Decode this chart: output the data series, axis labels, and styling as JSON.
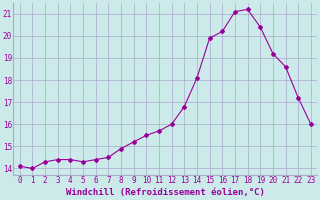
{
  "x": [
    0,
    1,
    2,
    3,
    4,
    5,
    6,
    7,
    8,
    9,
    10,
    11,
    12,
    13,
    14,
    15,
    16,
    17,
    18,
    19,
    20,
    21,
    22,
    23
  ],
  "y": [
    14.1,
    14.0,
    14.3,
    14.4,
    14.4,
    14.3,
    14.4,
    14.5,
    14.9,
    15.2,
    15.5,
    15.7,
    16.0,
    16.8,
    18.1,
    19.9,
    20.2,
    21.1,
    21.2,
    20.4,
    19.2,
    18.6,
    17.2,
    16.0
  ],
  "line_color": "#990099",
  "marker": "D",
  "markersize": 2.0,
  "linewidth": 0.8,
  "xlabel": "Windchill (Refroidissement éolien,°C)",
  "xlabel_fontsize": 6.5,
  "ylabel_ticks": [
    14,
    15,
    16,
    17,
    18,
    19,
    20,
    21
  ],
  "xtick_labels": [
    "0",
    "1",
    "2",
    "3",
    "4",
    "5",
    "6",
    "7",
    "8",
    "9",
    "10",
    "11",
    "12",
    "13",
    "14",
    "15",
    "16",
    "17",
    "18",
    "19",
    "20",
    "21",
    "22",
    "23"
  ],
  "xlim": [
    -0.5,
    23.5
  ],
  "ylim": [
    13.7,
    21.5
  ],
  "bg_color": "#cceaea",
  "grid_color": "#aaaacc",
  "tick_color": "#990099",
  "tick_fontsize": 5.5
}
